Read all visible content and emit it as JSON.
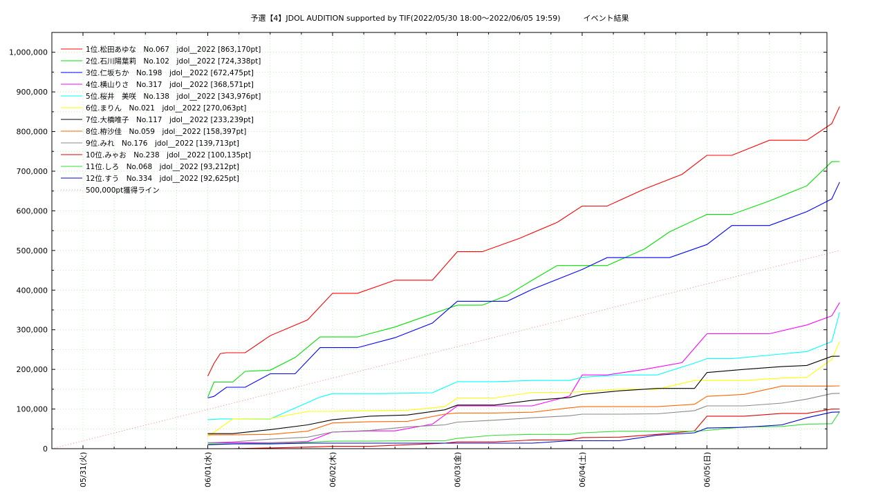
{
  "chart_data": {
    "type": "line",
    "title": "予選【4】JDOL AUDITION supported by TIF(2022/05/30 18:00～2022/06/05 19:59)　　　イベント結果",
    "xlabel": "",
    "ylabel": "",
    "x_range": [
      "2022-05-30 18:00",
      "2022-06-05 19:59"
    ],
    "ylim": [
      0,
      1050000
    ],
    "yticks": [
      0,
      100000,
      200000,
      300000,
      400000,
      500000,
      600000,
      700000,
      800000,
      900000,
      1000000
    ],
    "ytick_labels": [
      "0",
      "100,000",
      "200,000",
      "300,000",
      "400,000",
      "500,000",
      "600,000",
      "700,000",
      "800,000",
      "900,000",
      "1,000,000"
    ],
    "xtick_labels": [
      "05/31(火)",
      "06/01(水)",
      "06/02(木)",
      "06/03(金)",
      "06/04(土)",
      "06/05(日)"
    ],
    "grid": true,
    "legend_position": "top-left",
    "series": [
      {
        "name": "1位.松田あゆな　No.067　jdol__2022 [863,170pt]",
        "color": "#ff0000",
        "x": [
          1.0,
          1.05,
          1.1,
          1.15,
          1.2,
          1.3,
          1.5,
          1.8,
          2.0,
          2.2,
          2.5,
          2.8,
          3.0,
          3.2,
          3.5,
          3.8,
          4.0,
          4.2,
          4.5,
          4.8,
          5.0,
          5.2,
          5.5,
          5.8,
          6.0,
          6.063
        ],
        "y": [
          183000,
          215000,
          240000,
          242000,
          242000,
          242000,
          285000,
          325000,
          392000,
          392000,
          425000,
          425000,
          497000,
          497000,
          531000,
          571000,
          612000,
          612000,
          655000,
          692000,
          740000,
          740000,
          778000,
          778000,
          820000,
          863170
        ]
      },
      {
        "name": "2位.石川陽葉莉　No.102　jdol__2022 [724,338pt]",
        "color": "#00e000",
        "x": [
          1.0,
          1.05,
          1.1,
          1.2,
          1.3,
          1.5,
          1.7,
          1.9,
          2.0,
          2.2,
          2.5,
          2.8,
          3.0,
          3.2,
          3.4,
          3.6,
          3.8,
          4.0,
          4.2,
          4.5,
          4.7,
          5.0,
          5.2,
          5.5,
          5.8,
          6.0,
          6.063
        ],
        "y": [
          130000,
          168000,
          168000,
          168000,
          195000,
          198000,
          230000,
          282000,
          282000,
          282000,
          307000,
          340000,
          362000,
          362000,
          387000,
          425000,
          462000,
          462000,
          462000,
          504000,
          547000,
          591000,
          591000,
          625000,
          663000,
          724000,
          724338
        ]
      },
      {
        "name": "3位.仁坂ちか　No.198　jdol__2022 [672,475pt]",
        "color": "#0000ff",
        "x": [
          1.0,
          1.05,
          1.15,
          1.2,
          1.3,
          1.5,
          1.7,
          1.9,
          2.0,
          2.2,
          2.5,
          2.8,
          3.0,
          3.2,
          3.4,
          3.6,
          3.8,
          4.0,
          4.2,
          4.5,
          4.7,
          5.0,
          5.2,
          5.5,
          5.8,
          6.0,
          6.063
        ],
        "y": [
          128000,
          132000,
          155000,
          155000,
          155000,
          189000,
          189000,
          255000,
          255000,
          255000,
          280000,
          317000,
          372000,
          372000,
          372000,
          402000,
          427000,
          452000,
          482000,
          482000,
          482000,
          515000,
          563000,
          563000,
          598000,
          630000,
          672475
        ]
      },
      {
        "name": "4位.横山りさ　No.317　jdol__2022 [368,571pt]",
        "color": "#ff00ff",
        "x": [
          1.0,
          1.2,
          1.5,
          1.8,
          2.0,
          2.3,
          2.5,
          2.8,
          3.0,
          3.3,
          3.6,
          3.9,
          4.0,
          4.2,
          4.5,
          4.8,
          5.0,
          5.2,
          5.5,
          5.8,
          6.0,
          6.063
        ],
        "y": [
          15000,
          15000,
          15000,
          18000,
          42000,
          45000,
          45000,
          62000,
          108000,
          108000,
          108000,
          133000,
          186000,
          186000,
          200000,
          217000,
          290000,
          290000,
          290000,
          312000,
          335000,
          368571
        ]
      },
      {
        "name": "5位.桜井　美咲　No.138　jdol__2022 [343,976pt]",
        "color": "#00ffff",
        "x": [
          1.0,
          1.1,
          1.5,
          1.9,
          2.0,
          2.4,
          2.8,
          3.0,
          3.3,
          3.6,
          3.9,
          4.0,
          4.3,
          4.6,
          4.9,
          5.0,
          5.2,
          5.5,
          5.8,
          6.0,
          6.063
        ],
        "y": [
          73000,
          75000,
          75000,
          130000,
          139000,
          139000,
          141000,
          169000,
          169000,
          172000,
          172000,
          180000,
          186000,
          186000,
          216000,
          227000,
          227000,
          236000,
          245000,
          270000,
          343976
        ]
      },
      {
        "name": "6位.まりん　No.021　jdol__2022 [270,063pt]",
        "color": "#ffff00",
        "x": [
          1.0,
          1.2,
          1.5,
          1.8,
          2.0,
          2.3,
          2.6,
          2.9,
          3.0,
          3.3,
          3.6,
          3.9,
          4.0,
          4.3,
          4.6,
          4.9,
          5.0,
          5.3,
          5.6,
          5.8,
          6.0,
          6.063
        ],
        "y": [
          30000,
          75000,
          76000,
          94000,
          94000,
          96000,
          97000,
          106000,
          128000,
          128000,
          142000,
          142000,
          144000,
          150000,
          150000,
          172000,
          172000,
          172000,
          178000,
          180000,
          225000,
          270063
        ]
      },
      {
        "name": "7位.大橋唯子　No.117　jdol__2022 [233,239pt]",
        "color": "#000000",
        "x": [
          1.0,
          1.2,
          1.5,
          1.8,
          2.0,
          2.3,
          2.6,
          2.9,
          3.0,
          3.3,
          3.6,
          3.9,
          4.0,
          4.3,
          4.6,
          4.9,
          5.0,
          5.3,
          5.6,
          5.8,
          6.0,
          6.063
        ],
        "y": [
          38000,
          38000,
          48000,
          60000,
          73000,
          82000,
          85000,
          98000,
          110000,
          110000,
          122000,
          129000,
          137000,
          146000,
          152000,
          152000,
          192000,
          200000,
          207000,
          210000,
          233000,
          233239
        ]
      },
      {
        "name": "8位.栫沙佳　No.059　jdol__2022 [158,397pt]",
        "color": "#ff6600",
        "x": [
          1.0,
          1.2,
          1.5,
          1.8,
          2.0,
          2.3,
          2.6,
          2.9,
          3.0,
          3.3,
          3.6,
          3.9,
          4.0,
          4.3,
          4.6,
          4.9,
          5.0,
          5.3,
          5.6,
          5.8,
          6.0,
          6.063
        ],
        "y": [
          35000,
          35000,
          36000,
          44000,
          65000,
          68000,
          69000,
          87000,
          90000,
          90000,
          92000,
          103000,
          106000,
          106000,
          106000,
          112000,
          132000,
          137000,
          158000,
          158000,
          158000,
          158397
        ]
      },
      {
        "name": "9位.みれ　No.176　jdol__2022 [139,713pt]",
        "color": "#888888",
        "x": [
          1.0,
          1.2,
          1.5,
          1.8,
          2.0,
          2.3,
          2.6,
          2.9,
          3.0,
          3.3,
          3.6,
          3.9,
          4.0,
          4.3,
          4.6,
          4.9,
          5.0,
          5.3,
          5.6,
          5.8,
          6.0,
          6.063
        ],
        "y": [
          15000,
          17000,
          24000,
          29000,
          42000,
          46000,
          55000,
          60000,
          67000,
          72000,
          78000,
          83000,
          87000,
          87000,
          88000,
          96000,
          108000,
          108000,
          115000,
          125000,
          139000,
          139713
        ]
      },
      {
        "name": "10位.みゃお　No.238　jdol__2022 [100,135pt]",
        "color": "#e00000",
        "x": [
          1.0,
          1.2,
          1.5,
          1.8,
          2.0,
          2.3,
          2.6,
          2.9,
          3.0,
          3.3,
          3.6,
          3.9,
          4.0,
          4.3,
          4.6,
          4.9,
          5.0,
          5.3,
          5.6,
          5.8,
          6.0,
          6.063
        ],
        "y": [
          0,
          0,
          2000,
          4000,
          6000,
          6000,
          10000,
          14000,
          17000,
          17000,
          22000,
          22000,
          28000,
          29000,
          36000,
          45000,
          82000,
          82000,
          89000,
          89000,
          100000,
          100135
        ]
      },
      {
        "name": "11位.しろ　No.068　jdol__2022 [93,212pt]",
        "color": "#33dd33",
        "x": [
          1.0,
          1.2,
          1.5,
          1.8,
          2.0,
          2.3,
          2.6,
          2.9,
          3.0,
          3.3,
          3.6,
          3.9,
          4.0,
          4.3,
          4.6,
          4.9,
          5.0,
          5.3,
          5.6,
          5.8,
          6.0,
          6.063
        ],
        "y": [
          12000,
          12000,
          14000,
          16000,
          19000,
          19000,
          20000,
          20000,
          26000,
          34000,
          36000,
          36000,
          40000,
          44000,
          44000,
          44000,
          46000,
          55000,
          56000,
          62000,
          63000,
          93212
        ]
      },
      {
        "name": "12位.すう　No.334　jdol__2022 [92,625pt]",
        "color": "#0000cc",
        "x": [
          1.0,
          1.2,
          1.5,
          1.8,
          2.0,
          2.3,
          2.6,
          2.9,
          3.0,
          3.3,
          3.6,
          3.9,
          4.0,
          4.3,
          4.6,
          4.9,
          5.0,
          5.3,
          5.6,
          5.8,
          6.0,
          6.063
        ],
        "y": [
          10000,
          12000,
          12000,
          14000,
          14000,
          14000,
          14000,
          14000,
          14000,
          14000,
          14000,
          20000,
          20000,
          20000,
          34000,
          40000,
          52000,
          54000,
          60000,
          78000,
          92000,
          92625
        ]
      },
      {
        "name": "500,000pt獲得ライン",
        "color": "#ff8888",
        "dotted": true,
        "x": [
          -0.25,
          6.063
        ],
        "y": [
          0,
          500000
        ]
      }
    ]
  }
}
